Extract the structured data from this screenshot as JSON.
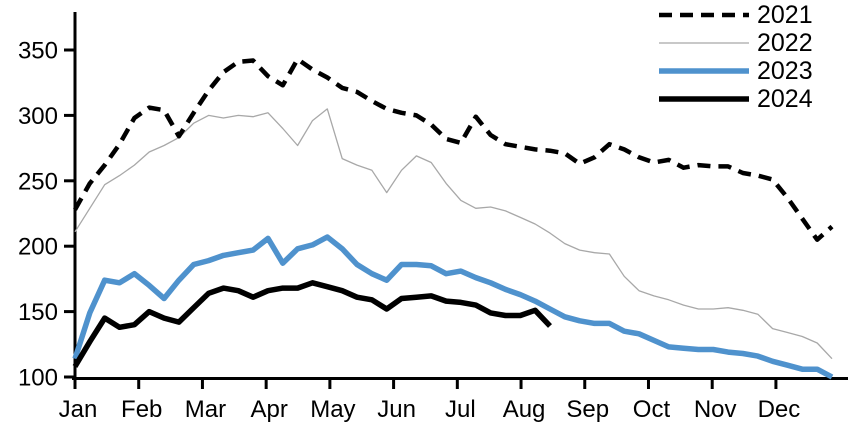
{
  "chart_data": {
    "type": "line",
    "title": "",
    "xlabel": "",
    "ylabel": "",
    "x_unit": "weekly observations, Jan-Dec",
    "month_labels": [
      "Jan",
      "Feb",
      "Mar",
      "Apr",
      "May",
      "Jun",
      "Jul",
      "Aug",
      "Sep",
      "Oct",
      "Nov",
      "Dec"
    ],
    "y_ticks": [
      100,
      150,
      200,
      250,
      300,
      350
    ],
    "ylim": [
      100,
      365
    ],
    "grid": "off",
    "legend_position": "top-right",
    "axis_color": "#000000",
    "series": [
      {
        "name": "2021",
        "color": "#000000",
        "style": "dashed",
        "width": 4.5,
        "values": [
          228,
          248,
          262,
          278,
          298,
          306,
          304,
          284,
          302,
          319,
          333,
          341,
          342,
          330,
          323,
          343,
          335,
          329,
          321,
          318,
          311,
          305,
          302,
          300,
          293,
          282,
          279,
          299,
          285,
          278,
          276,
          274,
          273,
          271,
          263,
          268,
          278,
          274,
          268,
          264,
          266,
          260,
          262,
          261,
          261,
          256,
          254,
          251,
          237,
          221,
          205,
          215
        ]
      },
      {
        "name": "2022",
        "color": "#a8a8a8",
        "style": "solid",
        "width": 1.3,
        "values": [
          211,
          229,
          247,
          254,
          262,
          272,
          277,
          283,
          294,
          300,
          298,
          300,
          299,
          302,
          290,
          277,
          296,
          305,
          267,
          262,
          258,
          241,
          258,
          269,
          264,
          248,
          235,
          229,
          230,
          227,
          222,
          217,
          210,
          202,
          197,
          195,
          194,
          177,
          166,
          162,
          159,
          155,
          152,
          152,
          153,
          151,
          148,
          137,
          134,
          131,
          126,
          114
        ]
      },
      {
        "name": "2023",
        "color": "#4f92cd",
        "style": "solid",
        "width": 5.5,
        "values": [
          114,
          149,
          174,
          172,
          179,
          170,
          160,
          174,
          186,
          189,
          193,
          195,
          197,
          206,
          187,
          198,
          201,
          207,
          198,
          186,
          179,
          174,
          186,
          186,
          185,
          179,
          181,
          176,
          172,
          167,
          163,
          158,
          152,
          146,
          143,
          141,
          141,
          135,
          133,
          128,
          123,
          122,
          121,
          121,
          119,
          118,
          116,
          112,
          109,
          106,
          106,
          100
        ]
      },
      {
        "name": "2024",
        "color": "#000000",
        "style": "solid",
        "width": 5.5,
        "values": [
          108,
          127,
          145,
          138,
          140,
          150,
          145,
          142,
          153,
          164,
          168,
          166,
          161,
          166,
          168,
          168,
          172,
          169,
          166,
          161,
          159,
          152,
          160,
          161,
          162,
          158,
          157,
          155,
          149,
          147,
          147,
          151,
          139
        ]
      }
    ]
  },
  "legend": {
    "items": [
      {
        "label": "2021"
      },
      {
        "label": "2022"
      },
      {
        "label": "2023"
      },
      {
        "label": "2024"
      }
    ]
  }
}
